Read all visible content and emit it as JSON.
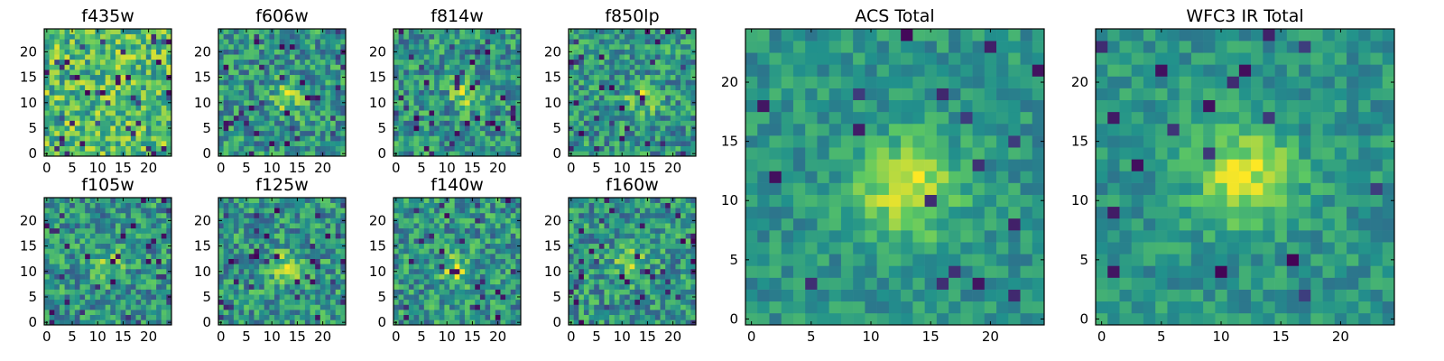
{
  "figure": {
    "type": "multi_panel_heatmap",
    "colormap": "viridis",
    "colormap_stops": [
      "#440154",
      "#3b528b",
      "#21918c",
      "#5ec962",
      "#fde725"
    ]
  },
  "chart_data": [
    {
      "type": "heatmap",
      "title": "f435w",
      "xlim": [
        0,
        25
      ],
      "ylim": [
        0,
        25
      ],
      "xticks": [
        "0",
        "5",
        "10",
        "15",
        "20"
      ],
      "yticks": [
        "0",
        "5",
        "10",
        "15",
        "20"
      ],
      "grid": false,
      "legend": "none",
      "peak": null
    },
    {
      "type": "heatmap",
      "title": "f606w",
      "xlim": [
        0,
        25
      ],
      "ylim": [
        0,
        25
      ],
      "xticks": [
        "0",
        "5",
        "10",
        "15",
        "20"
      ],
      "yticks": [
        "0",
        "5",
        "10",
        "15",
        "20"
      ],
      "grid": false,
      "legend": "none",
      "peak": [
        13,
        11
      ]
    },
    {
      "type": "heatmap",
      "title": "f814w",
      "xlim": [
        0,
        25
      ],
      "ylim": [
        0,
        25
      ],
      "xticks": [
        "0",
        "5",
        "10",
        "15",
        "20"
      ],
      "yticks": [
        "0",
        "5",
        "10",
        "15",
        "20"
      ],
      "grid": false,
      "legend": "none",
      "peak": [
        14,
        12
      ]
    },
    {
      "type": "heatmap",
      "title": "f850lp",
      "xlim": [
        0,
        25
      ],
      "ylim": [
        0,
        25
      ],
      "xticks": [
        "0",
        "5",
        "10",
        "15",
        "20"
      ],
      "yticks": [
        "0",
        "5",
        "10",
        "15",
        "20"
      ],
      "grid": false,
      "legend": "none",
      "peak": [
        14,
        11
      ]
    },
    {
      "type": "heatmap",
      "title": "f105w",
      "xlim": [
        0,
        25
      ],
      "ylim": [
        0,
        25
      ],
      "xticks": [
        "0",
        "5",
        "10",
        "15",
        "20"
      ],
      "yticks": [
        "0",
        "5",
        "10",
        "15",
        "20"
      ],
      "grid": false,
      "legend": "none",
      "peak": [
        12,
        11
      ]
    },
    {
      "type": "heatmap",
      "title": "f125w",
      "xlim": [
        0,
        25
      ],
      "ylim": [
        0,
        25
      ],
      "xticks": [
        "0",
        "5",
        "10",
        "15",
        "20"
      ],
      "yticks": [
        "0",
        "5",
        "10",
        "15",
        "20"
      ],
      "grid": false,
      "legend": "none",
      "peak": [
        13,
        11
      ]
    },
    {
      "type": "heatmap",
      "title": "f140w",
      "xlim": [
        0,
        25
      ],
      "ylim": [
        0,
        25
      ],
      "xticks": [
        "0",
        "5",
        "10",
        "15",
        "20"
      ],
      "yticks": [
        "0",
        "5",
        "10",
        "15",
        "20"
      ],
      "grid": false,
      "legend": "none",
      "peak": [
        12,
        10
      ]
    },
    {
      "type": "heatmap",
      "title": "f160w",
      "xlim": [
        0,
        25
      ],
      "ylim": [
        0,
        25
      ],
      "xticks": [
        "0",
        "5",
        "10",
        "15",
        "20"
      ],
      "yticks": [
        "0",
        "5",
        "10",
        "15",
        "20"
      ],
      "grid": false,
      "legend": "none",
      "peak": [
        12,
        12
      ]
    },
    {
      "type": "heatmap",
      "title": "ACS Total",
      "xlim": [
        0,
        25
      ],
      "ylim": [
        0,
        25
      ],
      "xticks": [
        "0",
        "5",
        "10",
        "15",
        "20"
      ],
      "yticks": [
        "0",
        "5",
        "10",
        "15",
        "20"
      ],
      "grid": false,
      "legend": "none",
      "peak": [
        13,
        11
      ]
    },
    {
      "type": "heatmap",
      "title": "WFC3 IR Total",
      "xlim": [
        0,
        25
      ],
      "ylim": [
        0,
        25
      ],
      "xticks": [
        "0",
        "5",
        "10",
        "15",
        "20"
      ],
      "yticks": [
        "0",
        "5",
        "10",
        "15",
        "20"
      ],
      "grid": false,
      "legend": "none",
      "peak": [
        12,
        12
      ]
    }
  ]
}
